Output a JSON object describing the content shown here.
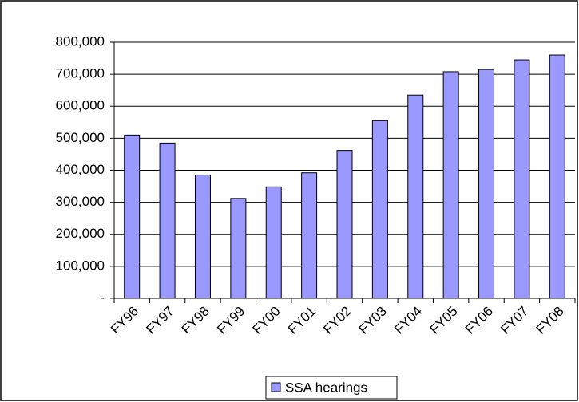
{
  "chart_data": {
    "type": "bar",
    "categories": [
      "FY96",
      "FY97",
      "FY98",
      "FY99",
      "FY00",
      "FY01",
      "FY02",
      "FY03",
      "FY04",
      "FY05",
      "FY06",
      "FY07",
      "FY08"
    ],
    "series": [
      {
        "name": "SSA hearings",
        "color": "#9999ff",
        "values": [
          510000,
          485000,
          385000,
          312000,
          348000,
          392000,
          462000,
          555000,
          635000,
          708000,
          715000,
          745000,
          760000
        ]
      }
    ],
    "ylim": [
      0,
      800000
    ],
    "yticks": [
      {
        "value": 0,
        "label": "-"
      },
      {
        "value": 100000,
        "label": "100,000"
      },
      {
        "value": 200000,
        "label": "200,000"
      },
      {
        "value": 300000,
        "label": "300,000"
      },
      {
        "value": 400000,
        "label": "400,000"
      },
      {
        "value": 500000,
        "label": "500,000"
      },
      {
        "value": 600000,
        "label": "600,000"
      },
      {
        "value": 700000,
        "label": "700,000"
      },
      {
        "value": 800000,
        "label": "800,000"
      }
    ],
    "grid": true,
    "legend": "bottom"
  }
}
